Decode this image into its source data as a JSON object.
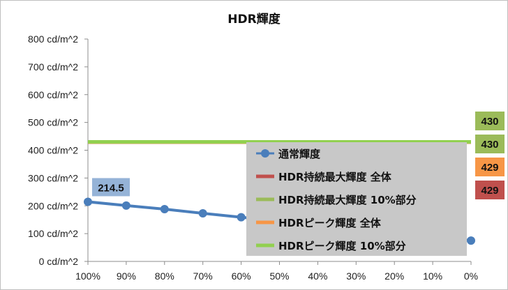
{
  "chart_data": {
    "type": "line",
    "title": "HDR輝度",
    "xlabel": "",
    "ylabel": "",
    "categories": [
      "100%",
      "90%",
      "80%",
      "70%",
      "60%",
      "50%",
      "40%",
      "30%",
      "20%",
      "10%",
      "0%"
    ],
    "ylim": [
      0,
      800
    ],
    "y_ticks": [
      {
        "value": 0,
        "label": "0 cd/m^2"
      },
      {
        "value": 100,
        "label": "100 cd/m^2"
      },
      {
        "value": 200,
        "label": "200 cd/m^2"
      },
      {
        "value": 300,
        "label": "300 cd/m^2"
      },
      {
        "value": 400,
        "label": "400 cd/m^2"
      },
      {
        "value": 500,
        "label": "500 cd/m^2"
      },
      {
        "value": 600,
        "label": "600 cd/m^2"
      },
      {
        "value": 700,
        "label": "700 cd/m^2"
      },
      {
        "value": 800,
        "label": "800 cd/m^2"
      }
    ],
    "grid": "none",
    "legend_position": "bottom-right",
    "series": [
      {
        "name": "通常輝度",
        "color": "#4a7ebb",
        "values": [
          214.5,
          201,
          188,
          173,
          159,
          145,
          131,
          117,
          103,
          89,
          75
        ],
        "markers": true
      },
      {
        "name": "HDR持続最大輝度 全体",
        "color": "#c0504d",
        "values": [
          429,
          429,
          429,
          429,
          429,
          429,
          429,
          429,
          429,
          429,
          429
        ]
      },
      {
        "name": "HDR持続最大輝度 10%部分",
        "color": "#9bbb59",
        "values": [
          430,
          430,
          430,
          430,
          430,
          430,
          430,
          430,
          430,
          430,
          430
        ]
      },
      {
        "name": "HDRピーク輝度 全体",
        "color": "#f79646",
        "values": [
          429,
          429,
          429,
          429,
          429,
          429,
          429,
          429,
          429,
          429,
          429
        ]
      },
      {
        "name": "HDRピーク輝度 10%部分",
        "color": "#92d050",
        "values": [
          430,
          430,
          430,
          430,
          430,
          430,
          430,
          430,
          430,
          430,
          430
        ]
      }
    ],
    "data_labels": [
      {
        "series": 0,
        "index": 0,
        "text": "214.5",
        "color": "#95b3d7"
      },
      {
        "series": 2,
        "text": "430",
        "color": "#9bbb59"
      },
      {
        "series": 4,
        "text": "430",
        "color": "#9bbb59"
      },
      {
        "series": 3,
        "text": "429",
        "color": "#f79646"
      },
      {
        "series": 1,
        "text": "429",
        "color": "#c0504d"
      }
    ]
  }
}
